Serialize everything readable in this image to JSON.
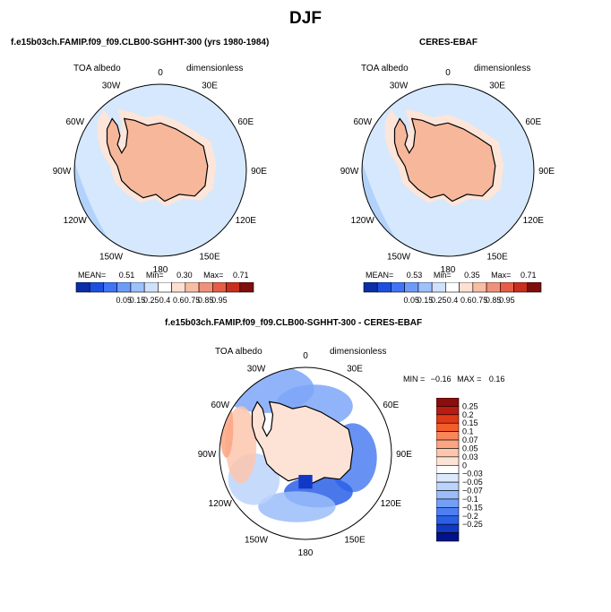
{
  "title": "DJF",
  "colors": {
    "land": "#f7b79b",
    "sea_light": "#d5e8fd",
    "sea_mid": "#a9ccfb",
    "coast": "#000000"
  },
  "panels": [
    {
      "id": "model",
      "title": "f.e15b03ch.FAMIP.f09_f09.CLB00-SGHHT-300 (yrs 1980-1984)",
      "variable": "TOA albedo",
      "units": "dimensionless",
      "lon_labels": [
        "0",
        "30E",
        "60E",
        "90E",
        "120E",
        "150E",
        "180",
        "150W",
        "120W",
        "90W",
        "60W",
        "30W"
      ],
      "stats": {
        "mean_label": "MEAN=",
        "mean": "0.51",
        "min_label": "Min=",
        "min": "0.30",
        "max_label": "Max=",
        "max": "0.71"
      }
    },
    {
      "id": "obs",
      "title": "CERES-EBAF",
      "variable": "TOA albedo",
      "units": "dimensionless",
      "lon_labels": [
        "0",
        "30E",
        "60E",
        "90E",
        "120E",
        "150E",
        "180",
        "150W",
        "120W",
        "90W",
        "60W",
        "30W"
      ],
      "stats": {
        "mean_label": "MEAN=",
        "mean": "0.53",
        "min_label": "Min=",
        "min": "0.35",
        "max_label": "Max=",
        "max": "0.71"
      }
    },
    {
      "id": "diff",
      "title": "f.e15b03ch.FAMIP.f09_f09.CLB00-SGHHT-300 - CERES-EBAF",
      "variable": "TOA albedo",
      "units": "dimensionless",
      "lon_labels": [
        "0",
        "30E",
        "60E",
        "90E",
        "120E",
        "150E",
        "180",
        "150W",
        "120W",
        "90W",
        "60W",
        "30W"
      ],
      "stats": {
        "min_label": "MIN =",
        "min": "−0.16",
        "max_label": "MAX =",
        "max": "0.16"
      }
    }
  ],
  "albedo_colorbar": {
    "labels": [
      "0.05",
      "0.15",
      "0.25",
      "0.4",
      "0.6",
      "0.75",
      "0.85",
      "0.95"
    ],
    "colors": [
      "#0a2ea8",
      "#1c4fe0",
      "#3e74f5",
      "#6c9bfa",
      "#9ec0fb",
      "#cfe1fd",
      "#ffffff",
      "#fde0d2",
      "#f9bda4",
      "#f1917a",
      "#e55e45",
      "#c82f1e",
      "#7e0f0c"
    ]
  },
  "diff_colorbar": {
    "labels": [
      "0.25",
      "0.2",
      "0.15",
      "0.1",
      "0.07",
      "0.05",
      "0.03",
      "0",
      "−0.03",
      "−0.05",
      "−0.07",
      "−0.1",
      "−0.15",
      "−0.2",
      "−0.25"
    ],
    "colors": [
      "#8c0d0d",
      "#b81b10",
      "#de3a16",
      "#f45d2b",
      "#fa8559",
      "#fca583",
      "#fdc6ad",
      "#fde3d6",
      "#ffffff",
      "#dce9fc",
      "#bcd4fb",
      "#9bbdfa",
      "#739ff7",
      "#4c7ff2",
      "#2a5fe6",
      "#1238c6",
      "#02128a"
    ]
  }
}
